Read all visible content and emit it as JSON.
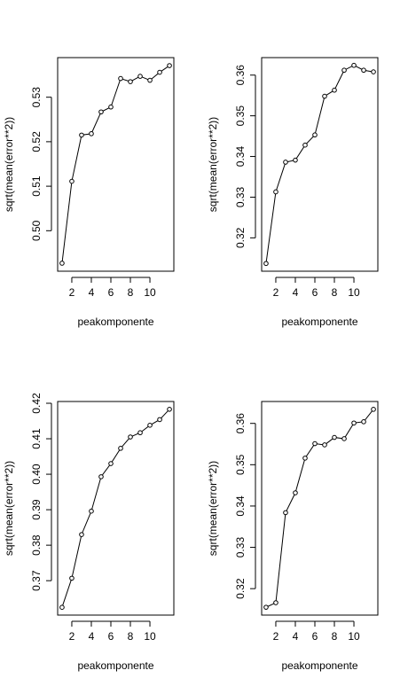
{
  "chart_data": [
    {
      "type": "line",
      "xlabel": "peakomponente",
      "ylabel": "sqrt(mean(error**2))",
      "x": [
        1,
        2,
        3,
        4,
        5,
        6,
        7,
        8,
        9,
        10,
        11,
        12
      ],
      "values": [
        0.4927,
        0.5111,
        0.5215,
        0.5218,
        0.5267,
        0.5278,
        0.5342,
        0.5335,
        0.5347,
        0.5338,
        0.5356,
        0.5371
      ],
      "xticks": [
        2,
        4,
        6,
        8,
        10
      ],
      "yticks": [
        0.5,
        0.51,
        0.52,
        0.53
      ],
      "xlim": [
        0.55,
        12.45
      ],
      "ylim": [
        0.4909,
        0.5389
      ],
      "grid": false,
      "markers": "open-circle"
    },
    {
      "type": "line",
      "xlabel": "peakomponente",
      "ylabel": "sqrt(mean(error**2))",
      "x": [
        1,
        2,
        3,
        4,
        5,
        6,
        7,
        8,
        9,
        10,
        11,
        12
      ],
      "values": [
        0.3137,
        0.3313,
        0.3386,
        0.3391,
        0.3428,
        0.3453,
        0.3548,
        0.3563,
        0.3612,
        0.3624,
        0.3612,
        0.3608
      ],
      "xticks": [
        2,
        4,
        6,
        8,
        10
      ],
      "yticks": [
        0.32,
        0.33,
        0.34,
        0.35,
        0.36
      ],
      "xlim": [
        0.55,
        12.45
      ],
      "ylim": [
        0.3118,
        0.3643
      ],
      "grid": false,
      "markers": "open-circle"
    },
    {
      "type": "line",
      "xlabel": "peakomponente",
      "ylabel": "sqrt(mean(error**2))",
      "x": [
        1,
        2,
        3,
        4,
        5,
        6,
        7,
        8,
        9,
        10,
        11,
        12
      ],
      "values": [
        0.3625,
        0.3707,
        0.383,
        0.3896,
        0.3993,
        0.403,
        0.4073,
        0.4105,
        0.4117,
        0.4138,
        0.4154,
        0.4183
      ],
      "xticks": [
        2,
        4,
        6,
        8,
        10
      ],
      "yticks": [
        0.37,
        0.38,
        0.39,
        0.4,
        0.41,
        0.42
      ],
      "xlim": [
        0.55,
        12.45
      ],
      "ylim": [
        0.3603,
        0.4205
      ],
      "grid": false,
      "markers": "open-circle"
    },
    {
      "type": "line",
      "xlabel": "peakomponente",
      "ylabel": "sqrt(mean(error**2))",
      "x": [
        1,
        2,
        3,
        4,
        5,
        6,
        7,
        8,
        9,
        10,
        11,
        12
      ],
      "values": [
        0.3155,
        0.3166,
        0.3384,
        0.3432,
        0.3516,
        0.3551,
        0.3548,
        0.3566,
        0.3563,
        0.3601,
        0.3604,
        0.3634
      ],
      "xticks": [
        2,
        4,
        6,
        8,
        10
      ],
      "yticks": [
        0.32,
        0.33,
        0.34,
        0.35,
        0.36
      ],
      "xlim": [
        0.55,
        12.45
      ],
      "ylim": [
        0.3136,
        0.3653
      ],
      "grid": false,
      "markers": "open-circle"
    }
  ]
}
